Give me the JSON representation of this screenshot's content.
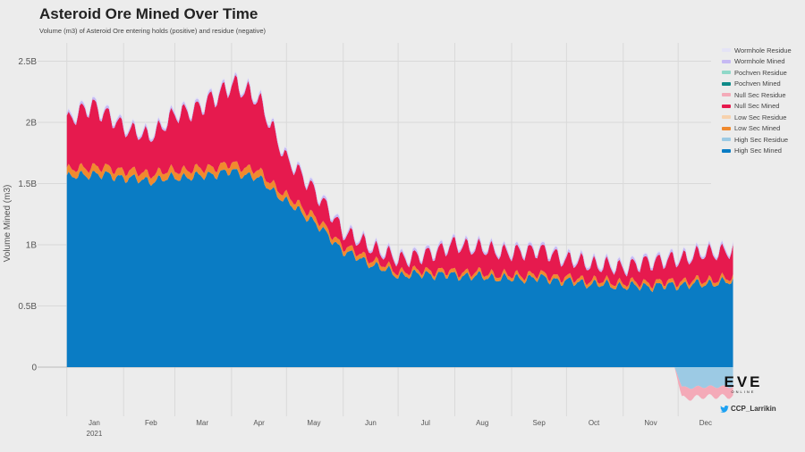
{
  "chart_data": {
    "type": "area",
    "title": "Asteroid Ore Mined Over Time",
    "subtitle": "Volume (m3) of Asteroid Ore entering holds (positive) and residue (negative)",
    "ylabel": "Volume Mined (m3)",
    "xlabel": "",
    "stacked": true,
    "ylim": [
      -0.27,
      2.65
    ],
    "ytick_values": [
      0,
      0.5,
      1,
      1.5,
      2,
      2.5
    ],
    "ytick_labels": [
      "0",
      "0.5B",
      "1B",
      "1.5B",
      "2B",
      "2.5B"
    ],
    "x_range_days": [
      -16,
      352
    ],
    "x_tick_days": [
      15,
      46,
      74,
      105,
      135,
      166,
      196,
      227,
      258,
      288,
      319,
      349
    ],
    "x_tick_labels": [
      "Jan",
      "Feb",
      "Mar",
      "Apr",
      "May",
      "Jun",
      "Jul",
      "Aug",
      "Sep",
      "Oct",
      "Nov",
      "Dec"
    ],
    "x_tick_sublabel": "2021",
    "grid": true,
    "legend_position": "right",
    "legend": [
      {
        "name": "Wormhole Residue",
        "color": "#e4e3f6"
      },
      {
        "name": "Wormhole Mined",
        "color": "#c6b9f3"
      },
      {
        "name": "Pochven Residue",
        "color": "#8fd8c8"
      },
      {
        "name": "Pochven Mined",
        "color": "#0e8a88"
      },
      {
        "name": "Null Sec Residue",
        "color": "#f4aab8"
      },
      {
        "name": "Null Sec Mined",
        "color": "#e61a4e"
      },
      {
        "name": "Low Sec Residue",
        "color": "#f7d2ad"
      },
      {
        "name": "Low Sec Mined",
        "color": "#f08a2e"
      },
      {
        "name": "High Sec Residue",
        "color": "#9ccae4"
      },
      {
        "name": "High Sec Mined",
        "color": "#0a7cc4"
      }
    ],
    "dates": [
      "2021-01-01",
      "2021-01-15",
      "2021-02-01",
      "2021-02-15",
      "2021-03-01",
      "2021-03-15",
      "2021-04-01",
      "2021-04-15",
      "2021-05-01",
      "2021-05-15",
      "2021-06-01",
      "2021-06-15",
      "2021-07-01",
      "2021-07-15",
      "2021-08-01",
      "2021-08-15",
      "2021-09-01",
      "2021-09-15",
      "2021-10-01",
      "2021-10-15",
      "2021-11-01",
      "2021-11-15",
      "2021-12-01",
      "2021-12-15",
      "2021-12-31"
    ],
    "series": [
      {
        "name": "High Sec Mined",
        "color": "#0a7cc4",
        "values": [
          1.55,
          1.58,
          1.55,
          1.52,
          1.55,
          1.56,
          1.6,
          1.55,
          1.35,
          1.2,
          0.95,
          0.85,
          0.75,
          0.76,
          0.75,
          0.74,
          0.72,
          0.73,
          0.7,
          0.68,
          0.66,
          0.66,
          0.67,
          0.68,
          0.7
        ]
      },
      {
        "name": "Low Sec Mined",
        "color": "#f08a2e",
        "values": [
          0.06,
          0.06,
          0.06,
          0.06,
          0.06,
          0.06,
          0.06,
          0.06,
          0.05,
          0.05,
          0.04,
          0.04,
          0.03,
          0.03,
          0.03,
          0.03,
          0.03,
          0.03,
          0.03,
          0.03,
          0.03,
          0.03,
          0.03,
          0.03,
          0.03
        ]
      },
      {
        "name": "Null Sec Mined",
        "color": "#e61a4e",
        "values": [
          0.4,
          0.5,
          0.35,
          0.3,
          0.45,
          0.5,
          0.65,
          0.6,
          0.3,
          0.22,
          0.12,
          0.1,
          0.1,
          0.12,
          0.22,
          0.2,
          0.18,
          0.2,
          0.15,
          0.13,
          0.12,
          0.17,
          0.18,
          0.22,
          0.22
        ]
      },
      {
        "name": "Wormhole Mined",
        "color": "#c6b9f3",
        "values": [
          0.02,
          0.02,
          0.02,
          0.02,
          0.02,
          0.02,
          0.02,
          0.02,
          0.02,
          0.02,
          0.02,
          0.02,
          0.02,
          0.02,
          0.02,
          0.02,
          0.02,
          0.02,
          0.02,
          0.02,
          0.02,
          0.02,
          0.02,
          0.02,
          0.02
        ]
      },
      {
        "name": "Wormhole Residue",
        "color": "#e4e3f6",
        "values": [
          0.01,
          0.01,
          0.01,
          0.01,
          0.01,
          0.01,
          0.01,
          0.01,
          0.01,
          0.01,
          0.01,
          0.01,
          0.01,
          0.01,
          0.01,
          0.01,
          0.01,
          0.01,
          0.01,
          0.01,
          0.01,
          0.01,
          0.01,
          0.01,
          0.01
        ]
      }
    ],
    "residue_series": [
      {
        "name": "High Sec Residue",
        "color": "#9ccae4",
        "dates": [
          "2021-11-29",
          "2021-12-05",
          "2021-12-15",
          "2021-12-31"
        ],
        "values": [
          -0.14,
          -0.17,
          -0.16,
          -0.16
        ]
      },
      {
        "name": "Null Sec Residue",
        "color": "#f4aab8",
        "dates": [
          "2021-11-29",
          "2021-12-05",
          "2021-12-15",
          "2021-12-31"
        ],
        "values": [
          -0.08,
          -0.09,
          -0.08,
          -0.08
        ]
      }
    ]
  },
  "branding": {
    "logo_text": "EVE",
    "logo_sub": "ONLINE",
    "credit": "CCP_Larrikin"
  }
}
